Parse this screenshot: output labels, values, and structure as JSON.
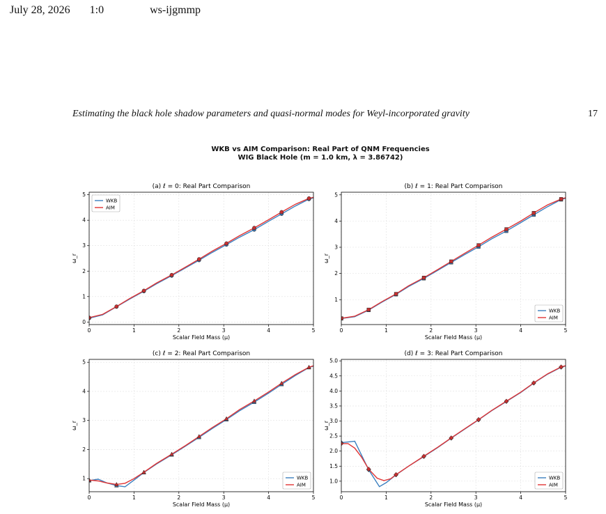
{
  "header": {
    "date": "July 28, 2026",
    "time": "1:0",
    "tag": "ws-ijgmmp"
  },
  "running_title": "Estimating the black hole shadow parameters and quasi-normal modes for Weyl-incorporated gravity",
  "page_number": "17",
  "figure_title": [
    "WKB vs AIM Comparison: Real Part of QNM Frequencies",
    "WIG Black Hole (m = 1.0 km, λ = 3.86742)"
  ],
  "colors": {
    "wkb": "#3a7fbf",
    "aim": "#e03434",
    "marker": "#c83030",
    "grid": "#e0e0e0"
  },
  "chart_data": [
    {
      "type": "line",
      "title": "(a) ℓ = 0: Real Part Comparison",
      "xlabel": "Scalar Field Mass (μ)",
      "ylabel": "ω_r",
      "xlim": [
        0,
        5
      ],
      "ylim": [
        -0.1,
        5.1
      ],
      "xticks": [
        "0",
        "1",
        "2",
        "3",
        "4",
        "5"
      ],
      "yticks": [
        "0",
        "1",
        "2",
        "3",
        "4",
        "5"
      ],
      "legend": "top-left",
      "grid": true,
      "marker": "circle",
      "series": [
        {
          "name": "WKB",
          "x": [
            0,
            0.3,
            0.61,
            0.9,
            1.22,
            1.5,
            1.84,
            2.15,
            2.45,
            2.75,
            3.06,
            3.35,
            3.68,
            4.0,
            4.29,
            4.6,
            4.9,
            5.0
          ],
          "y": [
            0.15,
            0.28,
            0.6,
            0.9,
            1.21,
            1.5,
            1.82,
            2.13,
            2.43,
            2.74,
            3.04,
            3.33,
            3.63,
            3.96,
            4.25,
            4.56,
            4.83,
            4.88
          ]
        },
        {
          "name": "AIM",
          "x": [
            0,
            0.3,
            0.61,
            0.9,
            1.22,
            1.5,
            1.84,
            2.15,
            2.45,
            2.75,
            3.06,
            3.35,
            3.68,
            4.0,
            4.29,
            4.6,
            4.9,
            5.0
          ],
          "y": [
            0.17,
            0.3,
            0.61,
            0.92,
            1.23,
            1.53,
            1.85,
            2.16,
            2.47,
            2.79,
            3.09,
            3.39,
            3.7,
            4.02,
            4.32,
            4.63,
            4.86,
            4.9
          ]
        }
      ],
      "marker_x": [
        0,
        0.61,
        1.22,
        1.84,
        2.45,
        3.06,
        3.68,
        4.29,
        4.9
      ]
    },
    {
      "type": "line",
      "title": "(b) ℓ = 1: Real Part Comparison",
      "xlabel": "Scalar Field Mass (μ)",
      "ylabel": "ω_r",
      "xlim": [
        0,
        5
      ],
      "ylim": [
        0.05,
        5.1
      ],
      "xticks": [
        "0",
        "1",
        "2",
        "3",
        "4",
        "5"
      ],
      "yticks": [
        "1",
        "2",
        "3",
        "4",
        "5"
      ],
      "legend": "bottom-right",
      "grid": true,
      "marker": "square",
      "series": [
        {
          "name": "WKB",
          "x": [
            0,
            0.3,
            0.61,
            0.9,
            1.22,
            1.5,
            1.84,
            2.15,
            2.45,
            2.75,
            3.06,
            3.35,
            3.68,
            4.0,
            4.29,
            4.6,
            4.9,
            5.0
          ],
          "y": [
            0.28,
            0.35,
            0.6,
            0.9,
            1.2,
            1.5,
            1.81,
            2.12,
            2.42,
            2.72,
            3.02,
            3.32,
            3.62,
            3.94,
            4.24,
            4.55,
            4.82,
            4.87
          ]
        },
        {
          "name": "AIM",
          "x": [
            0,
            0.3,
            0.61,
            0.9,
            1.22,
            1.5,
            1.84,
            2.15,
            2.45,
            2.75,
            3.06,
            3.35,
            3.68,
            4.0,
            4.29,
            4.6,
            4.9,
            5.0
          ],
          "y": [
            0.29,
            0.37,
            0.62,
            0.92,
            1.22,
            1.53,
            1.84,
            2.15,
            2.46,
            2.77,
            3.08,
            3.38,
            3.69,
            4.0,
            4.31,
            4.62,
            4.84,
            4.89
          ]
        }
      ],
      "marker_x": [
        0,
        0.61,
        1.22,
        1.84,
        2.45,
        3.06,
        3.68,
        4.29,
        4.9
      ]
    },
    {
      "type": "line",
      "title": "(c) ℓ = 2: Real Part Comparison",
      "xlabel": "Scalar Field Mass (μ)",
      "ylabel": "ω_r",
      "xlim": [
        0,
        5
      ],
      "ylim": [
        0.55,
        5.1
      ],
      "xticks": [
        "0",
        "1",
        "2",
        "3",
        "4",
        "5"
      ],
      "yticks": [
        "1",
        "2",
        "3",
        "4",
        "5"
      ],
      "legend": "bottom-right",
      "grid": true,
      "marker": "triangle",
      "series": [
        {
          "name": "WKB",
          "x": [
            0,
            0.2,
            0.4,
            0.61,
            0.8,
            1.0,
            1.22,
            1.5,
            1.84,
            2.15,
            2.45,
            2.75,
            3.06,
            3.35,
            3.68,
            4.0,
            4.29,
            4.6,
            4.9,
            5.0
          ],
          "y": [
            0.93,
            0.98,
            0.85,
            0.76,
            0.72,
            0.95,
            1.21,
            1.5,
            1.82,
            2.12,
            2.42,
            2.73,
            3.03,
            3.33,
            3.63,
            3.94,
            4.24,
            4.55,
            4.82,
            4.87
          ]
        },
        {
          "name": "AIM",
          "x": [
            0,
            0.2,
            0.4,
            0.61,
            0.8,
            1.0,
            1.22,
            1.5,
            1.84,
            2.15,
            2.45,
            2.75,
            3.06,
            3.35,
            3.68,
            4.0,
            4.29,
            4.6,
            4.9,
            5.0
          ],
          "y": [
            0.95,
            0.92,
            0.85,
            0.8,
            0.84,
            1.0,
            1.22,
            1.52,
            1.84,
            2.14,
            2.45,
            2.76,
            3.06,
            3.37,
            3.67,
            3.98,
            4.28,
            4.58,
            4.83,
            4.88
          ]
        }
      ],
      "marker_x": [
        0,
        0.61,
        1.22,
        1.84,
        2.45,
        3.06,
        3.68,
        4.29,
        4.9
      ]
    },
    {
      "type": "line",
      "title": "(d) ℓ = 3: Real Part Comparison",
      "xlabel": "Scalar Field Mass (μ)",
      "ylabel": "ω_r",
      "xlim": [
        0,
        5
      ],
      "ylim": [
        0.65,
        5.05
      ],
      "xticks": [
        "0",
        "1",
        "2",
        "3",
        "4",
        "5"
      ],
      "yticks": [
        "1.0",
        "1.5",
        "2.0",
        "2.5",
        "3.0",
        "3.5",
        "4.0",
        "4.5",
        "5.0"
      ],
      "legend": "bottom-right",
      "grid": true,
      "marker": "diamond",
      "series": [
        {
          "name": "WKB",
          "x": [
            0,
            0.3,
            0.61,
            0.85,
            1.0,
            1.22,
            1.5,
            1.84,
            2.15,
            2.45,
            2.75,
            3.06,
            3.35,
            3.68,
            4.0,
            4.29,
            4.6,
            4.9,
            5.0
          ],
          "y": [
            2.28,
            2.33,
            1.38,
            0.82,
            0.95,
            1.21,
            1.5,
            1.82,
            2.12,
            2.43,
            2.73,
            3.04,
            3.34,
            3.65,
            3.95,
            4.26,
            4.56,
            4.79,
            4.83
          ]
        },
        {
          "name": "AIM",
          "x": [
            0,
            0.15,
            0.3,
            0.45,
            0.61,
            0.8,
            0.95,
            1.1,
            1.22,
            1.5,
            1.84,
            2.15,
            2.45,
            2.75,
            3.06,
            3.35,
            3.68,
            4.0,
            4.29,
            4.6,
            4.9,
            5.0
          ],
          "y": [
            2.25,
            2.25,
            2.1,
            1.8,
            1.4,
            1.1,
            1.02,
            1.08,
            1.22,
            1.5,
            1.83,
            2.13,
            2.44,
            2.74,
            3.05,
            3.35,
            3.66,
            3.96,
            4.27,
            4.57,
            4.8,
            4.84
          ]
        }
      ],
      "marker_x": [
        0,
        0.61,
        1.22,
        1.84,
        2.45,
        3.06,
        3.68,
        4.29,
        4.9
      ]
    }
  ]
}
